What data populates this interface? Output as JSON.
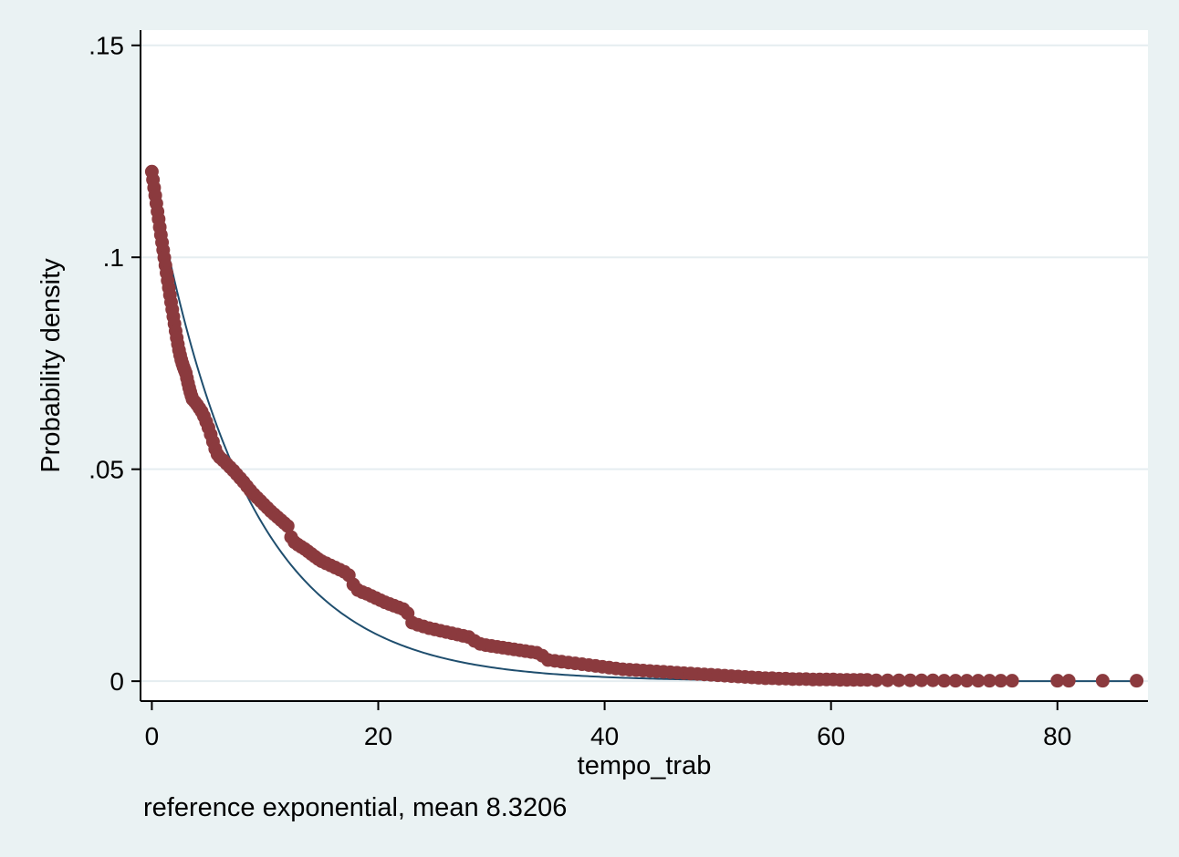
{
  "chart_data": {
    "type": "scatter",
    "title": "",
    "xlabel": "tempo_trab",
    "ylabel": "Probability density",
    "note": "reference exponential, mean 8.3206",
    "xlim": [
      -1,
      88
    ],
    "ylim": [
      -0.0047,
      0.1536
    ],
    "x_ticks": [
      0,
      20,
      40,
      60,
      80
    ],
    "x_tick_labels": [
      "0",
      "20",
      "40",
      "60",
      "80"
    ],
    "y_ticks": [
      0,
      0.05,
      0.1,
      0.15
    ],
    "y_tick_labels": [
      "0",
      ".05",
      ".1",
      ".15"
    ],
    "grid": true,
    "legend": "none",
    "colors": {
      "background": "#eaf2f3",
      "plot_area": "#ffffff",
      "grid": "#e5edf0",
      "points": "#8b3a3e",
      "reference_line": "#1f4e6e"
    },
    "series": [
      {
        "kind": "scatter",
        "points": [
          [
            0.0,
            0.1202
          ],
          [
            0.1,
            0.1183
          ],
          [
            0.2,
            0.1164
          ],
          [
            0.3,
            0.1146
          ],
          [
            0.4,
            0.1127
          ],
          [
            0.5,
            0.1108
          ],
          [
            0.6,
            0.109
          ],
          [
            0.7,
            0.1071
          ],
          [
            0.8,
            0.1053
          ],
          [
            0.9,
            0.1035
          ],
          [
            1.0,
            0.1017
          ],
          [
            1.1,
            0.0999
          ],
          [
            1.2,
            0.0981
          ],
          [
            1.3,
            0.0963
          ],
          [
            1.4,
            0.0945
          ],
          [
            1.5,
            0.0928
          ],
          [
            1.6,
            0.0911
          ],
          [
            1.7,
            0.0894
          ],
          [
            1.8,
            0.0877
          ],
          [
            1.9,
            0.086
          ],
          [
            2.0,
            0.0843
          ],
          [
            2.1,
            0.0826
          ],
          [
            2.2,
            0.081
          ],
          [
            2.3,
            0.0795
          ],
          [
            2.4,
            0.0781
          ],
          [
            2.5,
            0.0769
          ],
          [
            2.6,
            0.0758
          ],
          [
            2.7,
            0.0749
          ],
          [
            2.8,
            0.0741
          ],
          [
            2.9,
            0.0734
          ],
          [
            3.0,
            0.0727
          ],
          [
            3.1,
            0.0715
          ],
          [
            3.2,
            0.0703
          ],
          [
            3.3,
            0.0692
          ],
          [
            3.4,
            0.0682
          ],
          [
            3.5,
            0.0673
          ],
          [
            3.6,
            0.0665
          ],
          [
            3.8,
            0.0659
          ],
          [
            4.0,
            0.0652
          ],
          [
            4.2,
            0.0644
          ],
          [
            4.4,
            0.0636
          ],
          [
            4.6,
            0.0625
          ],
          [
            4.8,
            0.0612
          ],
          [
            5.0,
            0.0598
          ],
          [
            5.2,
            0.0582
          ],
          [
            5.4,
            0.0565
          ],
          [
            5.6,
            0.0548
          ],
          [
            5.8,
            0.0535
          ],
          [
            6.0,
            0.0528
          ],
          [
            6.3,
            0.0521
          ],
          [
            6.6,
            0.0513
          ],
          [
            6.9,
            0.0505
          ],
          [
            7.2,
            0.0497
          ],
          [
            7.5,
            0.0488
          ],
          [
            7.8,
            0.0479
          ],
          [
            8.1,
            0.047
          ],
          [
            8.4,
            0.046
          ],
          [
            8.7,
            0.045
          ],
          [
            9.0,
            0.0441
          ],
          [
            9.3,
            0.0433
          ],
          [
            9.6,
            0.0425
          ],
          [
            9.9,
            0.0417
          ],
          [
            10.2,
            0.0409
          ],
          [
            10.5,
            0.0401
          ],
          [
            10.8,
            0.0394
          ],
          [
            11.1,
            0.0387
          ],
          [
            11.4,
            0.038
          ],
          [
            11.7,
            0.0373
          ],
          [
            12.0,
            0.0366
          ],
          [
            12.3,
            0.034
          ],
          [
            12.6,
            0.0328
          ],
          [
            12.9,
            0.0322
          ],
          [
            13.2,
            0.0317
          ],
          [
            13.5,
            0.0312
          ],
          [
            13.8,
            0.0306
          ],
          [
            14.1,
            0.03
          ],
          [
            14.4,
            0.0294
          ],
          [
            14.7,
            0.0288
          ],
          [
            15.0,
            0.0283
          ],
          [
            15.4,
            0.0278
          ],
          [
            15.8,
            0.0273
          ],
          [
            16.2,
            0.0268
          ],
          [
            16.6,
            0.0263
          ],
          [
            17.0,
            0.0258
          ],
          [
            17.4,
            0.025
          ],
          [
            17.8,
            0.0228
          ],
          [
            18.2,
            0.0215
          ],
          [
            18.6,
            0.021
          ],
          [
            19.0,
            0.0206
          ],
          [
            19.4,
            0.0201
          ],
          [
            19.8,
            0.0196
          ],
          [
            20.2,
            0.0191
          ],
          [
            20.6,
            0.0186
          ],
          [
            21.0,
            0.0182
          ],
          [
            21.4,
            0.0178
          ],
          [
            21.8,
            0.0174
          ],
          [
            22.2,
            0.017
          ],
          [
            22.6,
            0.016
          ],
          [
            23.0,
            0.0138
          ],
          [
            23.5,
            0.0133
          ],
          [
            24.0,
            0.0129
          ],
          [
            24.5,
            0.0125
          ],
          [
            25.0,
            0.0122
          ],
          [
            25.5,
            0.0119
          ],
          [
            26.0,
            0.0116
          ],
          [
            26.5,
            0.0113
          ],
          [
            27.0,
            0.011
          ],
          [
            27.5,
            0.0107
          ],
          [
            28.0,
            0.0104
          ],
          [
            28.5,
            0.0095
          ],
          [
            29.0,
            0.0088
          ],
          [
            29.5,
            0.0085
          ],
          [
            30.0,
            0.0083
          ],
          [
            30.5,
            0.0081
          ],
          [
            31.0,
            0.0079
          ],
          [
            31.5,
            0.0077
          ],
          [
            32.0,
            0.0075
          ],
          [
            32.5,
            0.0073
          ],
          [
            33.0,
            0.0071
          ],
          [
            33.5,
            0.0069
          ],
          [
            34.0,
            0.0067
          ],
          [
            34.5,
            0.006
          ],
          [
            35.0,
            0.005
          ],
          [
            35.6,
            0.0048
          ],
          [
            36.2,
            0.0046
          ],
          [
            36.8,
            0.0044
          ],
          [
            37.4,
            0.0042
          ],
          [
            38.0,
            0.004
          ],
          [
            38.6,
            0.0038
          ],
          [
            39.2,
            0.0036
          ],
          [
            39.8,
            0.0034
          ],
          [
            40.4,
            0.0032
          ],
          [
            41.0,
            0.003
          ],
          [
            41.6,
            0.0028
          ],
          [
            42.2,
            0.0027
          ],
          [
            42.8,
            0.0026
          ],
          [
            43.4,
            0.0025
          ],
          [
            44.0,
            0.0024
          ],
          [
            44.6,
            0.0023
          ],
          [
            45.2,
            0.0022
          ],
          [
            45.8,
            0.0021
          ],
          [
            46.4,
            0.002
          ],
          [
            47.0,
            0.0019
          ],
          [
            47.6,
            0.0018
          ],
          [
            48.2,
            0.0017
          ],
          [
            48.8,
            0.0016
          ],
          [
            49.4,
            0.0015
          ],
          [
            50.0,
            0.0014
          ],
          [
            50.6,
            0.0013
          ],
          [
            51.2,
            0.0012
          ],
          [
            51.8,
            0.0011
          ],
          [
            52.4,
            0.001
          ],
          [
            53.0,
            0.0009
          ],
          [
            53.6,
            0.0008
          ],
          [
            54.2,
            0.0007
          ],
          [
            54.8,
            0.0007
          ],
          [
            55.4,
            0.0006
          ],
          [
            56.0,
            0.0006
          ],
          [
            56.6,
            0.0005
          ],
          [
            57.2,
            0.0005
          ],
          [
            57.8,
            0.0005
          ],
          [
            58.4,
            0.0004
          ],
          [
            59.0,
            0.0004
          ],
          [
            59.6,
            0.0004
          ],
          [
            60.2,
            0.0004
          ],
          [
            60.8,
            0.0003
          ],
          [
            61.4,
            0.0003
          ],
          [
            62.0,
            0.0003
          ],
          [
            62.6,
            0.0003
          ],
          [
            63.2,
            0.0003
          ],
          [
            64.0,
            0.0002
          ],
          [
            65.0,
            0.0002
          ],
          [
            66.0,
            0.0002
          ],
          [
            67.0,
            0.0002
          ],
          [
            68.0,
            0.0002
          ],
          [
            69.0,
            0.0002
          ],
          [
            70.0,
            0.0001
          ],
          [
            71.0,
            0.0001
          ],
          [
            72.0,
            0.0001
          ],
          [
            73.0,
            0.0001
          ],
          [
            74.0,
            0.0001
          ],
          [
            75.0,
            0.0001
          ],
          [
            76.0,
            0.0001
          ],
          [
            80.0,
            0.0001
          ],
          [
            81.0,
            0.0001
          ],
          [
            84.0,
            0.0001
          ],
          [
            87.0,
            0.0001
          ]
        ]
      },
      {
        "kind": "line",
        "function": "exponential_density",
        "mean": 8.3206,
        "x_range": [
          1.0,
          87.0
        ]
      }
    ]
  }
}
